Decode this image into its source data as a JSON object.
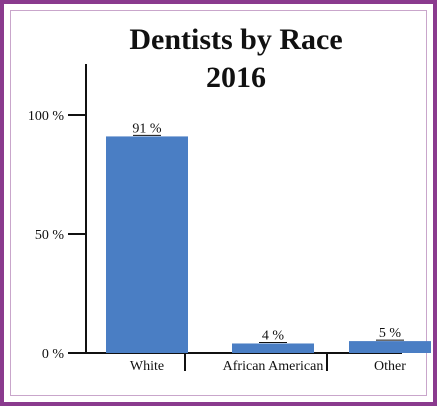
{
  "chart_data": {
    "type": "bar",
    "title_lines": [
      "Dentists by Race",
      "2016"
    ],
    "categories": [
      "White",
      "African American",
      "Other"
    ],
    "values": [
      91,
      4,
      5
    ],
    "value_labels": [
      "91 %",
      "4 %",
      "5 %"
    ],
    "yticks": [
      0,
      50,
      100
    ],
    "ytick_labels": [
      "0 %",
      "50 %",
      "100 %"
    ],
    "ylim": [
      0,
      100
    ],
    "bar_color": "#4a7ec4",
    "grid": false
  },
  "colors": {
    "frame": "#8a3a8e",
    "bar": "#4a7ec4"
  }
}
